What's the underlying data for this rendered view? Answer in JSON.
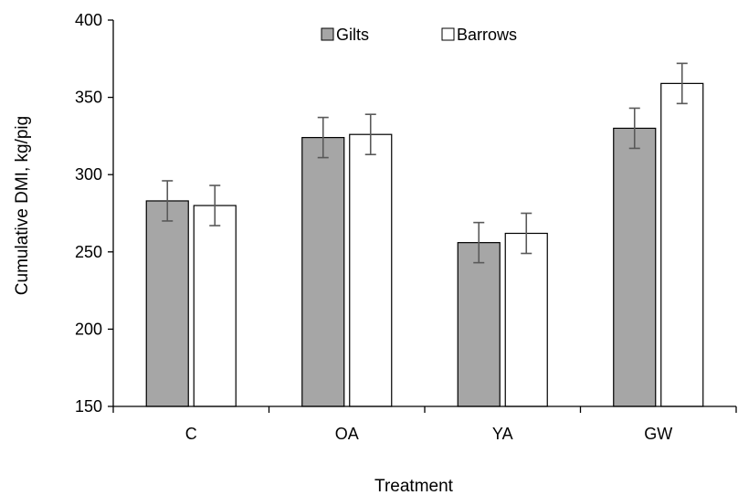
{
  "chart_data": {
    "type": "bar",
    "title": "",
    "xlabel": "Treatment",
    "ylabel": "Cumulative DMI, kg/pig",
    "categories": [
      "C",
      "OA",
      "YA",
      "GW"
    ],
    "ylim": [
      150,
      400
    ],
    "yticks": [
      150,
      200,
      250,
      300,
      350,
      400
    ],
    "yticks_text": [
      "150",
      "200",
      "250",
      "300",
      "350",
      "400"
    ],
    "grid": false,
    "legend_position": "top-center",
    "series": [
      {
        "name": "Gilts",
        "values": [
          283,
          324,
          256,
          330
        ],
        "errors": [
          13,
          13,
          13,
          13
        ],
        "color": "#a6a6a6"
      },
      {
        "name": "Barrows",
        "values": [
          280,
          326,
          262,
          359
        ],
        "errors": [
          13,
          13,
          13,
          13
        ],
        "color": "#ffffff"
      }
    ],
    "error_bar_color": "#595959"
  }
}
